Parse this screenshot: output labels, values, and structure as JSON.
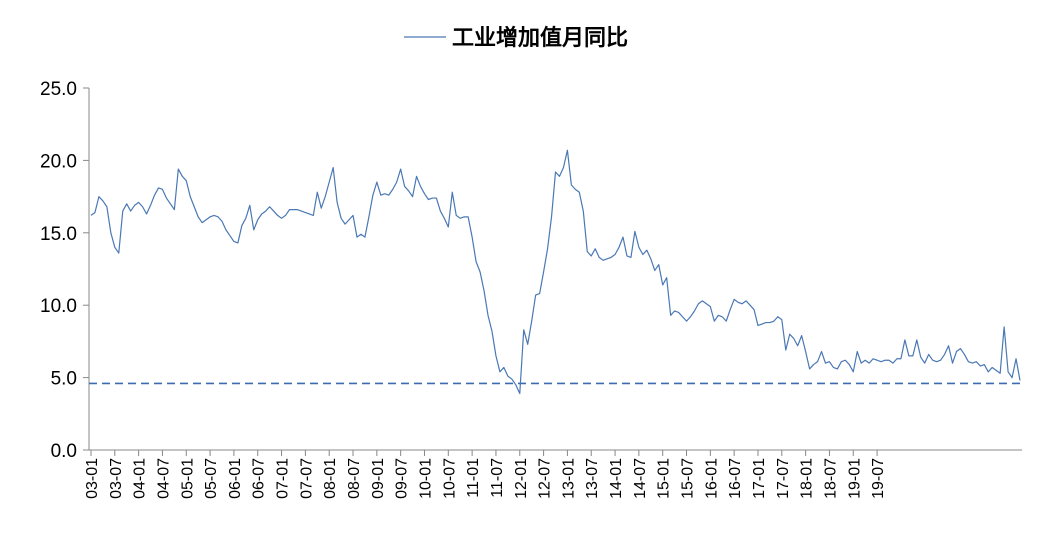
{
  "chart_data": {
    "type": "line",
    "title": "",
    "xlabel": "",
    "ylabel": "",
    "ylim": [
      0,
      25
    ],
    "yticks": [
      "0.0",
      "5.0",
      "10.0",
      "15.0",
      "20.0",
      "25.0"
    ],
    "grid": false,
    "legend_position": "top",
    "x_tick_labels": [
      "03-01",
      "03-07",
      "04-01",
      "04-07",
      "05-01",
      "05-07",
      "06-01",
      "06-07",
      "07-01",
      "07-07",
      "08-01",
      "08-07",
      "09-01",
      "09-07",
      "10-01",
      "10-07",
      "11-01",
      "11-07",
      "12-01",
      "12-07",
      "13-01",
      "13-07",
      "14-01",
      "14-07",
      "15-01",
      "15-07",
      "16-01",
      "16-07",
      "17-01",
      "17-07",
      "18-01",
      "18-07",
      "19-01",
      "19-07"
    ],
    "x_start": "2003-01",
    "series": [
      {
        "name": "工业增加值月同比",
        "color": "#4a78b5",
        "values": [
          16.2,
          16.4,
          17.5,
          17.2,
          16.8,
          15.0,
          14.0,
          13.6,
          16.5,
          17.0,
          16.5,
          16.9,
          17.1,
          16.8,
          16.3,
          16.9,
          17.6,
          18.1,
          18.0,
          17.4,
          17.0,
          16.6,
          19.4,
          18.9,
          18.6,
          17.5,
          16.8,
          16.1,
          15.7,
          15.9,
          16.1,
          16.2,
          16.1,
          15.8,
          15.2,
          14.8,
          14.4,
          14.3,
          15.5,
          16.0,
          16.9,
          15.2,
          15.9,
          16.3,
          16.5,
          16.8,
          16.5,
          16.2,
          16.0,
          16.2,
          16.6,
          16.6,
          16.6,
          16.5,
          16.4,
          16.3,
          16.2,
          17.8,
          16.7,
          17.5,
          18.5,
          19.5,
          17.1,
          16.0,
          15.6,
          15.9,
          16.2,
          14.7,
          14.9,
          14.7,
          16.1,
          17.6,
          18.5,
          17.6,
          17.7,
          17.6,
          18.0,
          18.5,
          19.4,
          18.2,
          17.9,
          17.5,
          18.9,
          18.2,
          17.7,
          17.3,
          17.4,
          17.4,
          16.5,
          16.0,
          15.4,
          17.8,
          16.2,
          16.0,
          16.1,
          16.1,
          14.7,
          13.0,
          12.3,
          11.0,
          9.3,
          8.2,
          6.5,
          5.4,
          5.7,
          5.1,
          4.9,
          4.5,
          3.9,
          8.3,
          7.3,
          8.9,
          10.7,
          10.8,
          12.3,
          13.9,
          16.1,
          19.2,
          18.9,
          19.5,
          20.7,
          18.3,
          18.0,
          17.8,
          16.5,
          13.7,
          13.4,
          13.9,
          13.3,
          13.1,
          13.2,
          13.3,
          13.5,
          14.0,
          14.7,
          13.4,
          13.3,
          15.1,
          14.0,
          13.5,
          13.8,
          13.2,
          12.4,
          12.8,
          11.4,
          11.9,
          9.3,
          9.6,
          9.5,
          9.2,
          8.9,
          9.2,
          9.6,
          10.1,
          10.3,
          10.1,
          9.9,
          8.9,
          9.3,
          9.2,
          8.9,
          9.7,
          10.4,
          10.2,
          10.1,
          10.3,
          10.0,
          9.7,
          8.6,
          8.7,
          8.8,
          8.8,
          8.9,
          9.2,
          9.0,
          6.9,
          8.0,
          7.7,
          7.2,
          7.9,
          6.8,
          5.6,
          5.9,
          6.1,
          6.8,
          6.0,
          6.1,
          5.7,
          5.6,
          6.1,
          6.2,
          5.9,
          5.4,
          6.8,
          6.0,
          6.2,
          6.0,
          6.3,
          6.2,
          6.1,
          6.2,
          6.2,
          6.0,
          6.3,
          6.3,
          7.6,
          6.5,
          6.5,
          7.6,
          6.4,
          6.0,
          6.6,
          6.2,
          6.1,
          6.2,
          6.6,
          7.2,
          6.0,
          6.8,
          7.0,
          6.6,
          6.1,
          6.0,
          6.1,
          5.8,
          5.9,
          5.4,
          5.7,
          5.5,
          5.3,
          8.5,
          5.4,
          5.0,
          6.3,
          4.8
        ]
      }
    ],
    "reference_lines": [
      {
        "style": "dashed",
        "value": 4.6,
        "color": "#3c6bb0"
      }
    ]
  }
}
